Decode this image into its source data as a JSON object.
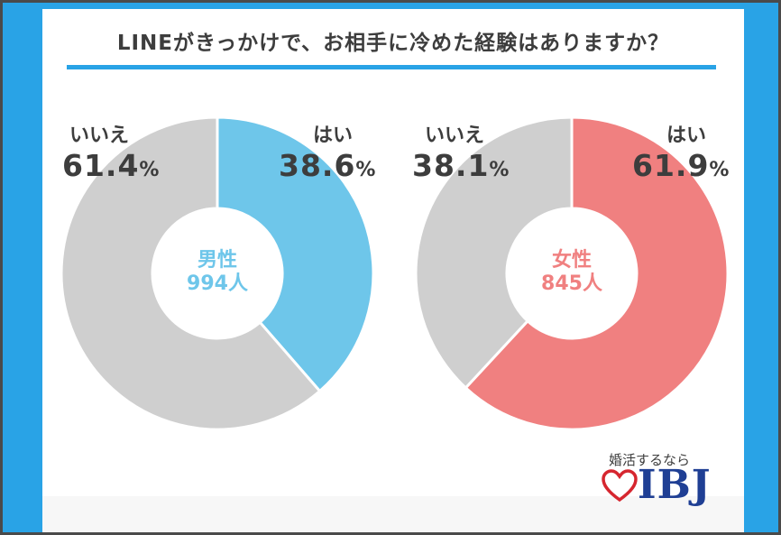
{
  "title": "LINEがきっかけで、お相手に冷めた経験はありますか？",
  "colors": {
    "frame": "#29a3e6",
    "no": "#cfcfcf",
    "male_yes": "#6ec6ea",
    "female_yes": "#f08080",
    "text": "#3d3d3d"
  },
  "chart_data": [
    {
      "type": "pie",
      "group": "男性",
      "count": "994人",
      "slices": [
        {
          "label": "はい",
          "value": 38.6
        },
        {
          "label": "いいえ",
          "value": 61.4
        }
      ]
    },
    {
      "type": "pie",
      "group": "女性",
      "count": "845人",
      "slices": [
        {
          "label": "はい",
          "value": 61.9
        },
        {
          "label": "いいえ",
          "value": 38.1
        }
      ]
    }
  ],
  "labels": {
    "male": {
      "yes": "はい",
      "yes_pct": "38.6",
      "no": "いいえ",
      "no_pct": "61.4"
    },
    "female": {
      "yes": "はい",
      "yes_pct": "61.9",
      "no": "いいえ",
      "no_pct": "38.1"
    },
    "unit": "%"
  },
  "brand": {
    "tagline": "婚活するなら",
    "logo": "IBJ",
    "icon": "heart-icon"
  }
}
